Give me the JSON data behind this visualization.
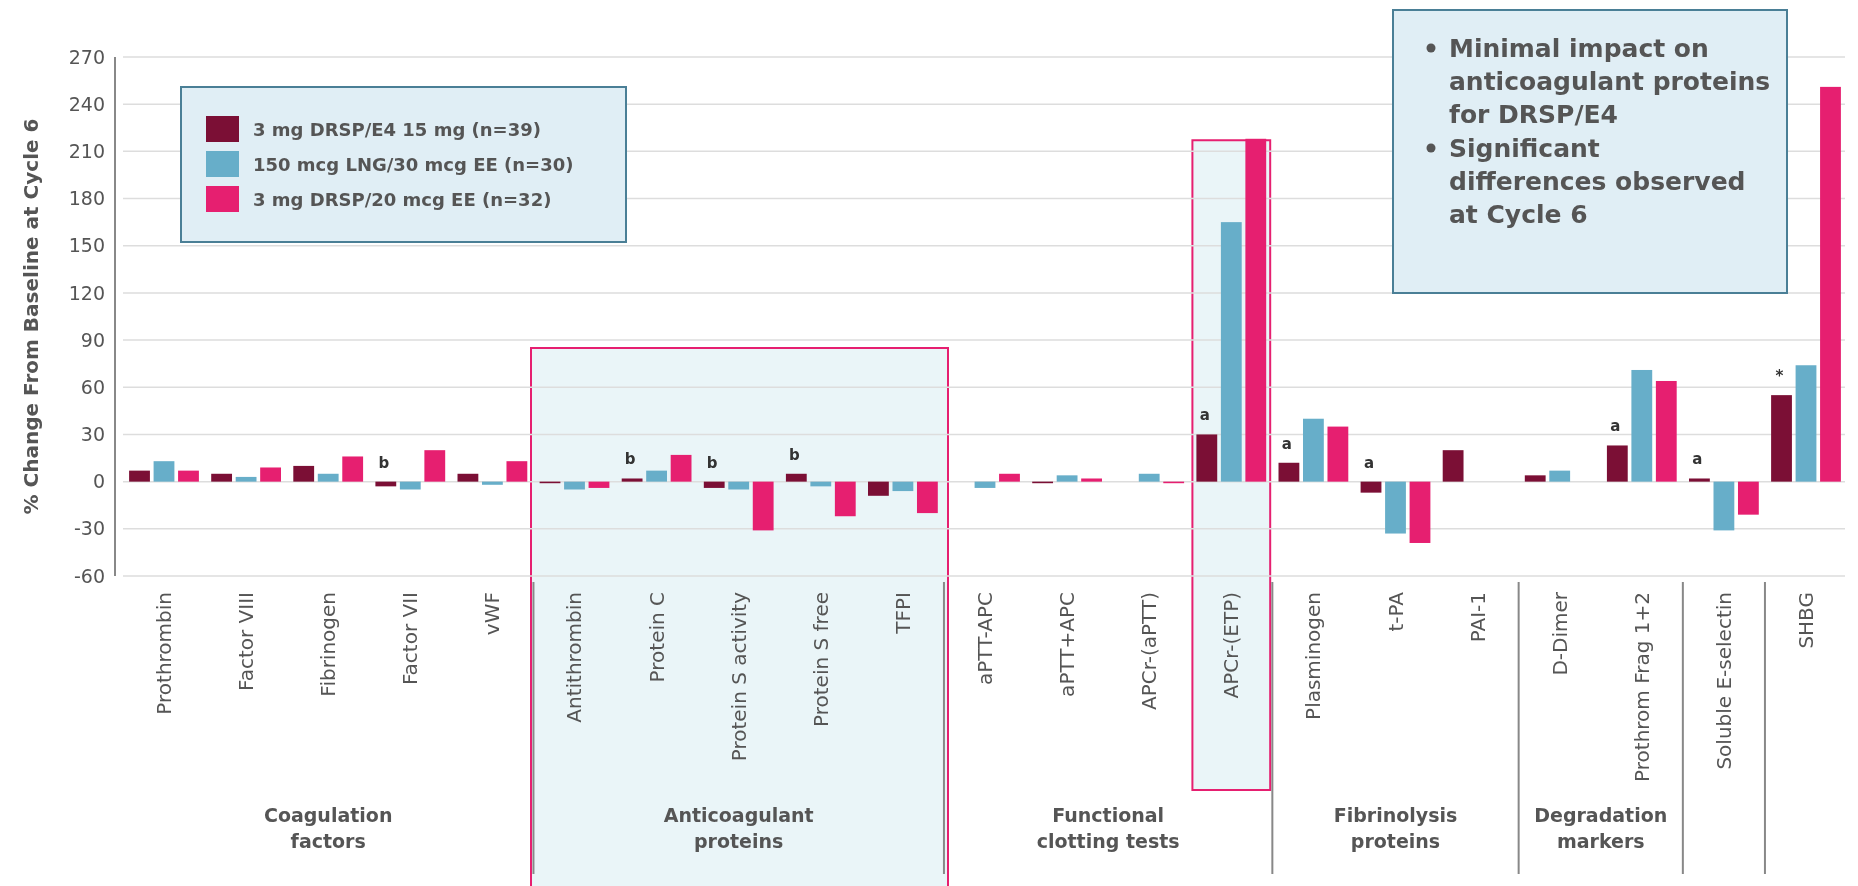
{
  "chart_data": {
    "type": "bar",
    "ylabel": "% Change From Baseline at Cycle 6",
    "categories": [
      "Prothrombin",
      "Factor VIII",
      "Fibrinogen",
      "Factor VII",
      "vWF",
      "Antithrombin",
      "Protein C",
      "Protein S activity",
      "Protein S free",
      "TFPI",
      "aPTT-APC",
      "aPTT+APC",
      "APCr-(aPTT)",
      "APCr-(ETP)",
      "Plasminogen",
      "t-PA",
      "PAI-1",
      "D-Dimer",
      "Prothrom Frag 1+2",
      "Soluble E-selectin",
      "SHBG"
    ],
    "series": [
      {
        "name": "3 mg DRSP/E4 15 mg (n=39)",
        "color": "#7b0f35",
        "values": [
          7,
          5,
          10,
          -3,
          5,
          -1,
          2,
          -4,
          5,
          -9,
          null,
          -1,
          null,
          30,
          12,
          -7,
          20,
          4,
          23,
          2,
          55
        ]
      },
      {
        "name": "150 mcg LNG/30 mcg EE (n=30)",
        "color": "#67aec9",
        "values": [
          13,
          3,
          5,
          -5,
          -2,
          -5,
          7,
          -5,
          -3,
          -6,
          -4,
          4,
          5,
          165,
          40,
          -33,
          null,
          7,
          71,
          -31,
          74
        ]
      },
      {
        "name": "3 mg DRSP/20 mcg EE (n=32)",
        "color": "#e61f70",
        "values": [
          7,
          9,
          16,
          20,
          13,
          -4,
          17,
          -31,
          -22,
          -20,
          5,
          2,
          -1,
          218,
          35,
          -39,
          null,
          null,
          64,
          -21,
          251
        ]
      }
    ],
    "ylim": [
      -60,
      270
    ],
    "yticks": [
      -60,
      -30,
      0,
      30,
      60,
      90,
      120,
      150,
      180,
      210,
      240,
      270
    ],
    "grid": "y",
    "legend": "top left",
    "annotations": [
      "b",
      "b",
      "b",
      "b",
      "a",
      "a",
      "a",
      "a",
      "a",
      "*",
      "Coagulation factors",
      "Anticoagulant proteins",
      "Functional clotting tests",
      "Fibrinolysis proteins",
      "Degradation markers",
      "Minimal impact on anticoagulant proteins for DRSP/E4",
      "Significant differences observed at Cycle 6"
    ]
  }
}
